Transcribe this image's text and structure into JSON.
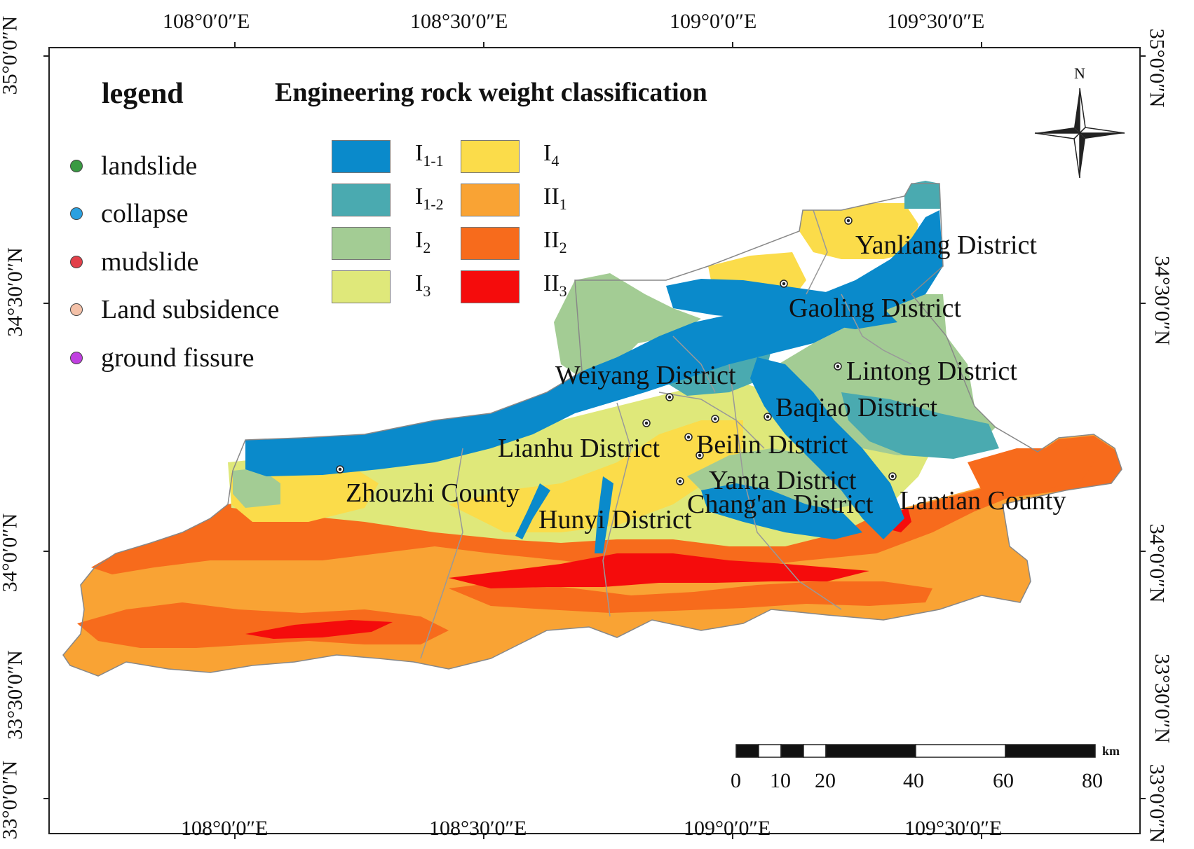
{
  "legend": {
    "title": "legend",
    "items": [
      {
        "label": "landslide",
        "color": "#3a9a43"
      },
      {
        "label": "collapse",
        "color": "#2aa0e0"
      },
      {
        "label": "mudslide",
        "color": "#e2404a"
      },
      {
        "label": "Land subsidence",
        "color": "#f4c1a8"
      },
      {
        "label": "ground fissure",
        "color": "#c040e0"
      }
    ]
  },
  "classification": {
    "title": "Engineering rock weight classification",
    "classes": [
      {
        "main": "I",
        "sub": "1-1",
        "color": "#0a8acb"
      },
      {
        "main": "I",
        "sub": "1-2",
        "color": "#4aaab0"
      },
      {
        "main": "I",
        "sub": "2",
        "color": "#a3cc94"
      },
      {
        "main": "I",
        "sub": "3",
        "color": "#dfe87a"
      },
      {
        "main": "I",
        "sub": "4",
        "color": "#fbdc4a"
      },
      {
        "main": "II",
        "sub": "1",
        "color": "#f9a334"
      },
      {
        "main": "II",
        "sub": "2",
        "color": "#f76b1c"
      },
      {
        "main": "II",
        "sub": "3",
        "color": "#f50c0c"
      }
    ]
  },
  "graticule": {
    "top_lon": [
      "108°0′0″E",
      "108°30′0″E",
      "109°0′0″E",
      "109°30′0″E"
    ],
    "bottom_lon": [
      "108°0′0″E",
      "108°30′0″E",
      "109°0′0″E",
      "109°30′0″E"
    ],
    "left_lat": [
      "35°0′0″N",
      "34°30′0″N",
      "34°0′0″N",
      "33°30′0″N",
      "33°0′0″N"
    ],
    "right_lat": [
      "35°0′0″N",
      "34°30′0″N",
      "34°0′0″N",
      "33°30′0″N",
      "33°0′0″N"
    ]
  },
  "districts": [
    "Yanliang District",
    "Gaoling District",
    "Lintong District",
    "Weiyang District",
    "Baqiao District",
    "Lianhu District",
    "Beilin District",
    "Yanta District",
    "Zhouzhi County",
    "Chang'an District",
    "Lantian County",
    "Hunyi District"
  ],
  "scale_bar": {
    "unit": "km",
    "ticks": [
      "0",
      "10",
      "20",
      "40",
      "60",
      "80"
    ]
  },
  "north_arrow": {
    "label": "N"
  }
}
